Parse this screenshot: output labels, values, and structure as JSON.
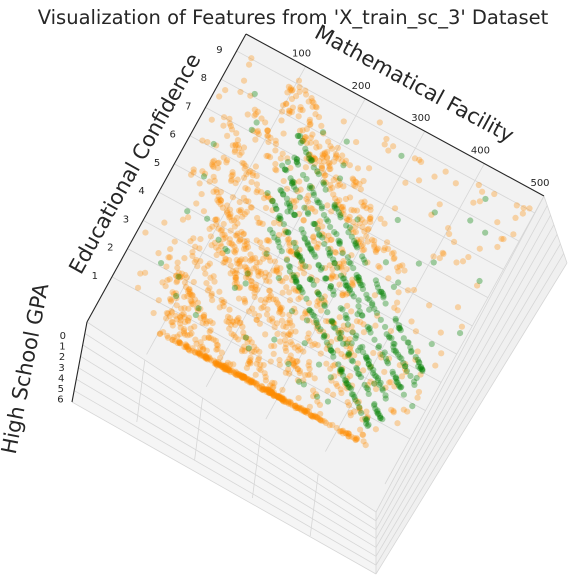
{
  "chart_data": {
    "type": "scatter",
    "projection": "3d",
    "title": "Visualization of Features from 'X_train_sc_3'  Dataset",
    "x_axis": {
      "label": "Mathematical Facility",
      "ticks": [
        "100",
        "200",
        "300",
        "400",
        "500"
      ],
      "range": [
        0,
        500
      ]
    },
    "y_axis": {
      "label": "Educational Confidence",
      "ticks": [
        "1",
        "2",
        "3",
        "4",
        "5",
        "6",
        "7",
        "8",
        "9"
      ],
      "range": [
        1,
        9
      ]
    },
    "z_axis": {
      "label": "High School GPA",
      "ticks": [
        "0",
        "1",
        "2",
        "3",
        "4",
        "5",
        "6"
      ],
      "range": [
        0,
        6
      ]
    },
    "grid": true,
    "legend": "none",
    "series": [
      {
        "color": "#ff8c00",
        "alpha": 0.32,
        "approx_points": 1200
      },
      {
        "color": "#008000",
        "alpha": 0.35,
        "approx_points": 450
      }
    ],
    "green_dense_diagonal_bands": [
      {
        "mathematical_facility": [
          140,
          470
        ],
        "educational_confidence": [
          7.6,
          3.0
        ]
      },
      {
        "mathematical_facility": [
          140,
          470
        ],
        "educational_confidence": [
          7.1,
          2.5
        ]
      },
      {
        "mathematical_facility": [
          140,
          470
        ],
        "educational_confidence": [
          6.6,
          2.0
        ]
      },
      {
        "mathematical_facility": [
          140,
          460
        ],
        "educational_confidence": [
          6.1,
          1.5
        ]
      },
      {
        "mathematical_facility": [
          140,
          450
        ],
        "educational_confidence": [
          5.6,
          1.1
        ]
      },
      {
        "mathematical_facility": [
          140,
          440
        ],
        "educational_confidence": [
          5.1,
          0.7
        ]
      }
    ]
  }
}
